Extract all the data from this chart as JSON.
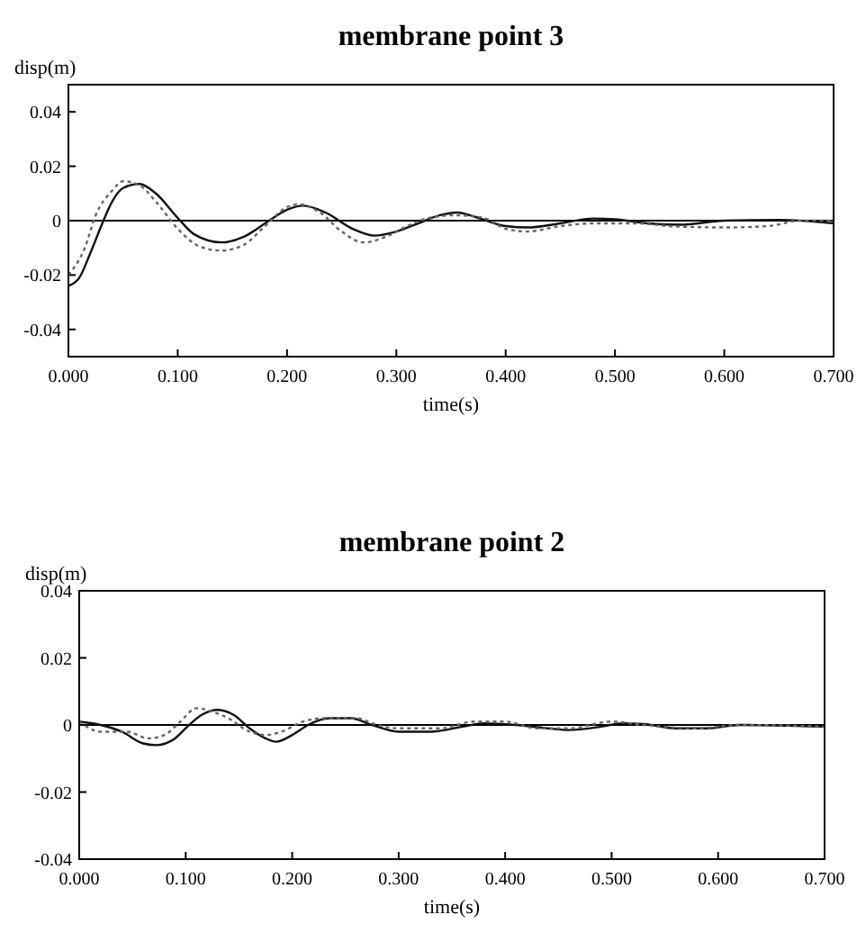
{
  "chart_data": [
    {
      "type": "line",
      "title": "membrane point 3",
      "xlabel": "time(s)",
      "ylabel": "disp(m)",
      "xlim": [
        0,
        0.7
      ],
      "ylim": [
        -0.05,
        0.05
      ],
      "xticks": [
        {
          "value": 0,
          "label": "0.000"
        },
        {
          "value": 0.1,
          "label": "0.100"
        },
        {
          "value": 0.2,
          "label": "0.200"
        },
        {
          "value": 0.3,
          "label": "0.300"
        },
        {
          "value": 0.4,
          "label": "0.400"
        },
        {
          "value": 0.5,
          "label": "0.500"
        },
        {
          "value": 0.6,
          "label": "0.600"
        },
        {
          "value": 0.7,
          "label": "0.700"
        }
      ],
      "yticks": [
        -0.04,
        -0.02,
        0,
        0.02,
        0.04
      ],
      "grid": false,
      "ref_lines": [
        {
          "axis": "y",
          "value": 0,
          "color": "#000000"
        }
      ],
      "series": [
        {
          "color": "#111111",
          "line_style": "solid",
          "x": [
            0,
            0.01,
            0.02,
            0.03,
            0.04,
            0.05,
            0.065,
            0.08,
            0.1,
            0.115,
            0.14,
            0.16,
            0.18,
            0.2,
            0.215,
            0.235,
            0.26,
            0.28,
            0.3,
            0.32,
            0.34,
            0.355,
            0.375,
            0.4,
            0.42,
            0.45,
            0.48,
            0.5,
            0.53,
            0.56,
            0.6,
            0.65,
            0.7
          ],
          "values": [
            -0.024,
            -0.021,
            -0.012,
            -0.002,
            0.007,
            0.012,
            0.0135,
            0.01,
            0.001,
            -0.005,
            -0.008,
            -0.006,
            -0.001,
            0.004,
            0.0055,
            0.003,
            -0.003,
            -0.0055,
            -0.004,
            -0.001,
            0.002,
            0.003,
            0.001,
            -0.002,
            -0.0025,
            -0.001,
            0.0008,
            0.0005,
            -0.001,
            -0.0015,
            0,
            0.0003,
            -0.001
          ]
        },
        {
          "color": "#666666",
          "line_style": "dotted",
          "x": [
            0,
            0.015,
            0.025,
            0.04,
            0.05,
            0.065,
            0.08,
            0.1,
            0.12,
            0.14,
            0.16,
            0.18,
            0.2,
            0.21,
            0.23,
            0.25,
            0.27,
            0.29,
            0.31,
            0.33,
            0.355,
            0.38,
            0.4,
            0.42,
            0.45,
            0.48,
            0.52,
            0.55,
            0.6,
            0.64,
            0.67,
            0.7
          ],
          "values": [
            -0.02,
            -0.01,
            0.002,
            0.011,
            0.0145,
            0.013,
            0.007,
            -0.003,
            -0.0095,
            -0.011,
            -0.009,
            -0.002,
            0.005,
            0.006,
            0.003,
            -0.004,
            -0.008,
            -0.006,
            -0.002,
            0.001,
            0.002,
            0.001,
            -0.003,
            -0.004,
            -0.002,
            -0.001,
            -0.001,
            -0.002,
            -0.0025,
            -0.002,
            0,
            0
          ]
        }
      ]
    },
    {
      "type": "line",
      "title": "membrane point 2",
      "xlabel": "time(s)",
      "ylabel": "disp(m)",
      "xlim": [
        0,
        0.7
      ],
      "ylim": [
        -0.04,
        0.04
      ],
      "xticks": [
        {
          "value": 0,
          "label": "0.000"
        },
        {
          "value": 0.1,
          "label": "0.100"
        },
        {
          "value": 0.2,
          "label": "0.200"
        },
        {
          "value": 0.3,
          "label": "0.300"
        },
        {
          "value": 0.4,
          "label": "0.400"
        },
        {
          "value": 0.5,
          "label": "0.500"
        },
        {
          "value": 0.6,
          "label": "0.600"
        },
        {
          "value": 0.7,
          "label": "0.700"
        }
      ],
      "yticks": [
        -0.04,
        -0.02,
        0,
        0.02,
        0.04
      ],
      "grid": false,
      "ref_lines": [
        {
          "axis": "y",
          "value": 0,
          "color": "#000000"
        }
      ],
      "series": [
        {
          "color": "#111111",
          "line_style": "solid",
          "x": [
            0,
            0.02,
            0.04,
            0.06,
            0.072,
            0.09,
            0.1,
            0.115,
            0.13,
            0.145,
            0.16,
            0.175,
            0.185,
            0.2,
            0.215,
            0.235,
            0.255,
            0.275,
            0.3,
            0.33,
            0.36,
            0.38,
            0.41,
            0.44,
            0.46,
            0.49,
            0.51,
            0.53,
            0.56,
            0.59,
            0.62,
            0.7
          ],
          "values": [
            0.001,
            0,
            -0.002,
            -0.0055,
            -0.006,
            -0.004,
            -0.001,
            0.003,
            0.0045,
            0.003,
            -0.001,
            -0.004,
            -0.005,
            -0.003,
            0,
            0.002,
            0.002,
            0,
            -0.002,
            -0.002,
            -0.0005,
            0.0005,
            0,
            -0.001,
            -0.0015,
            -0.0005,
            0.0005,
            0.0003,
            -0.001,
            -0.001,
            0,
            -0.0005
          ]
        },
        {
          "color": "#666666",
          "line_style": "dotted",
          "x": [
            0,
            0.02,
            0.045,
            0.065,
            0.08,
            0.095,
            0.11,
            0.125,
            0.14,
            0.16,
            0.175,
            0.19,
            0.21,
            0.23,
            0.26,
            0.28,
            0.3,
            0.34,
            0.37,
            0.4,
            0.43,
            0.46,
            0.5,
            0.53,
            0.58,
            0.62,
            0.7
          ],
          "values": [
            0.001,
            -0.002,
            -0.002,
            -0.004,
            -0.003,
            0.001,
            0.005,
            0.004,
            0.002,
            -0.002,
            -0.003,
            -0.002,
            0.001,
            0.002,
            0.002,
            0,
            -0.001,
            -0.001,
            0.001,
            0.001,
            -0.001,
            -0.001,
            0.001,
            0,
            -0.001,
            0,
            -0.0005
          ]
        }
      ]
    }
  ]
}
